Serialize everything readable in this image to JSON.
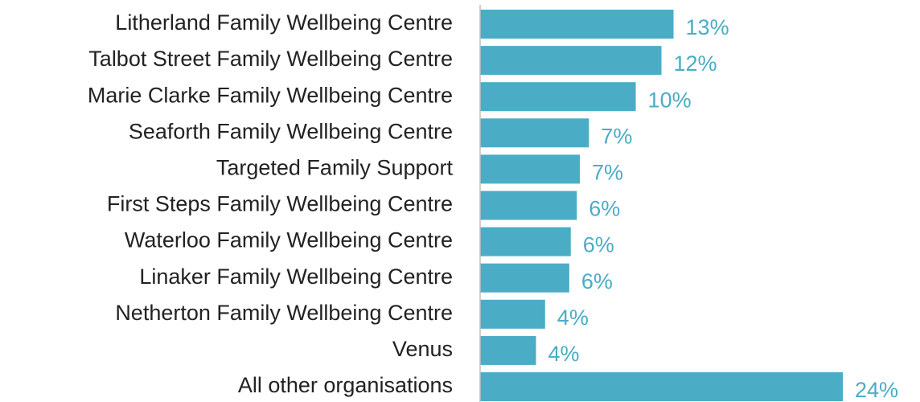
{
  "chart_data": {
    "type": "bar",
    "orientation": "horizontal",
    "categories": [
      "Litherland Family Wellbeing Centre",
      "Talbot Street Family Wellbeing Centre",
      "Marie Clarke Family Wellbeing Centre",
      "Seaforth Family Wellbeing Centre",
      "Targeted Family Support",
      "First Steps Family Wellbeing Centre",
      "Waterloo Family Wellbeing Centre",
      "Linaker Family Wellbeing Centre",
      "Netherton Family Wellbeing Centre",
      "Venus",
      "All other organisations"
    ],
    "values": [
      12.8,
      12.0,
      10.3,
      7.2,
      6.6,
      6.4,
      6.0,
      5.9,
      4.3,
      3.7,
      24.0
    ],
    "value_labels": [
      "13%",
      "12%",
      "10%",
      "7%",
      "7%",
      "6%",
      "6%",
      "6%",
      "4%",
      "4%",
      "24%"
    ],
    "color": "#4bacc6"
  }
}
